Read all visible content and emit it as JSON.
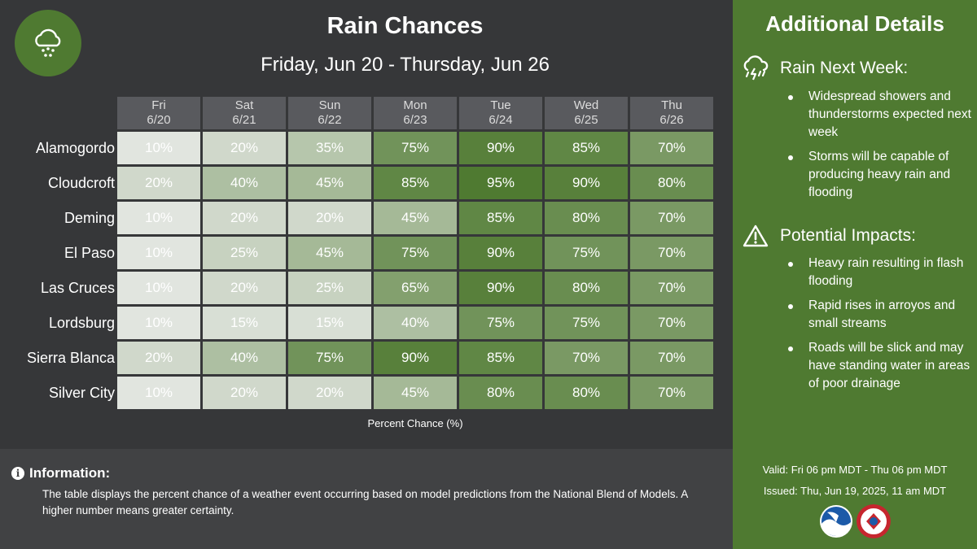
{
  "header": {
    "title": "Rain Chances",
    "subtitle": "Friday, Jun 20 - Thursday, Jun 26",
    "logo_icon": "rain-cloud-icon"
  },
  "table": {
    "days": [
      {
        "name": "Fri",
        "date": "6/20"
      },
      {
        "name": "Sat",
        "date": "6/21"
      },
      {
        "name": "Sun",
        "date": "6/22"
      },
      {
        "name": "Mon",
        "date": "6/23"
      },
      {
        "name": "Tue",
        "date": "6/24"
      },
      {
        "name": "Wed",
        "date": "6/25"
      },
      {
        "name": "Thu",
        "date": "6/26"
      }
    ],
    "rows": [
      {
        "location": "Alamogordo",
        "values": [
          "10%",
          "20%",
          "35%",
          "75%",
          "90%",
          "85%",
          "70%"
        ]
      },
      {
        "location": "Cloudcroft",
        "values": [
          "20%",
          "40%",
          "45%",
          "85%",
          "95%",
          "90%",
          "80%"
        ]
      },
      {
        "location": "Deming",
        "values": [
          "10%",
          "20%",
          "20%",
          "45%",
          "85%",
          "80%",
          "70%"
        ]
      },
      {
        "location": "El Paso",
        "values": [
          "10%",
          "25%",
          "45%",
          "75%",
          "90%",
          "75%",
          "70%"
        ]
      },
      {
        "location": "Las Cruces",
        "values": [
          "10%",
          "20%",
          "25%",
          "65%",
          "90%",
          "80%",
          "70%"
        ]
      },
      {
        "location": "Lordsburg",
        "values": [
          "10%",
          "15%",
          "15%",
          "40%",
          "75%",
          "75%",
          "70%"
        ]
      },
      {
        "location": "Sierra Blanca",
        "values": [
          "20%",
          "40%",
          "75%",
          "90%",
          "85%",
          "70%",
          "70%"
        ]
      },
      {
        "location": "Silver City",
        "values": [
          "10%",
          "20%",
          "20%",
          "45%",
          "80%",
          "80%",
          "70%"
        ]
      }
    ],
    "caption": "Percent Chance (%)"
  },
  "info": {
    "heading": "Information:",
    "text": "The table displays the percent chance of a weather event occurring based on model predictions from the National Blend of Models. A higher number means greater certainty."
  },
  "details": {
    "title": "Additional Details",
    "sections": [
      {
        "heading": "Rain Next Week:",
        "icon": "thunderstorm-icon",
        "bullets": [
          "Widespread showers and thunderstorms expected next week",
          "Storms will be capable of producing heavy rain and flooding"
        ]
      },
      {
        "heading": "Potential Impacts:",
        "icon": "warning-triangle-icon",
        "bullets": [
          "Heavy rain resulting in flash flooding",
          "Rapid rises in arroyos and small streams",
          "Roads will be slick and may have standing water in areas of poor drainage"
        ]
      }
    ],
    "valid": "Valid: Fri 06 pm MDT - Thu 06 pm MDT",
    "issued": "Issued: Thu, Jun 19, 2025, 11 am MDT"
  },
  "logos": {
    "noaa_text": "NOAA",
    "nws_text": "NATIONAL WEATHER SERVICE"
  },
  "colors": {
    "panel_bg": "#363739",
    "side_bg": "#4f7a31",
    "header_cell": "#595a5e",
    "low": "#e1e5df",
    "high": "#4f7a31"
  }
}
